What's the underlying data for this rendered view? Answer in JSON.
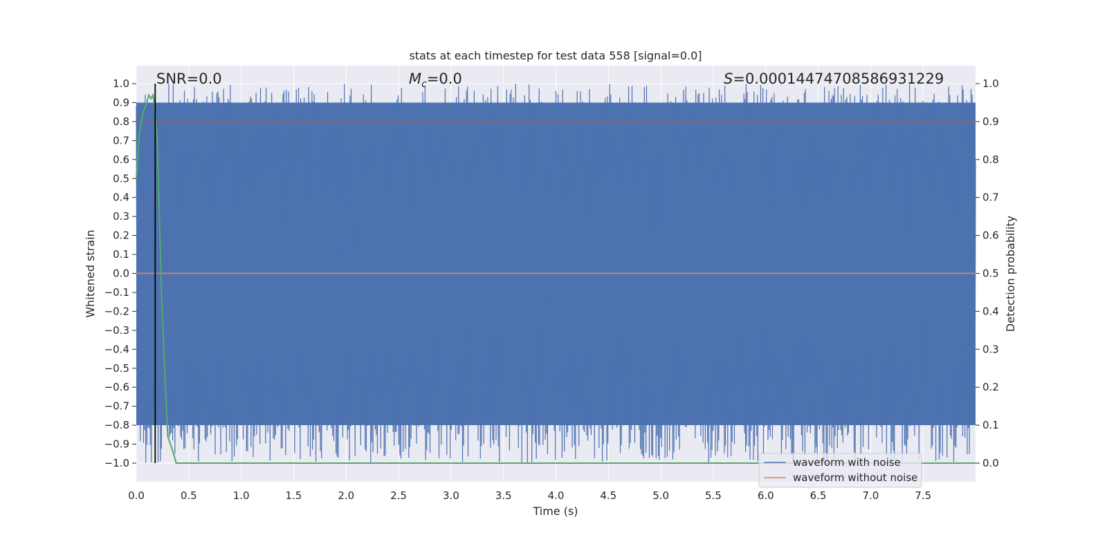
{
  "chart_data": {
    "type": "line",
    "title": "stats at each timestep for test data 558 [signal=0.0]",
    "xlabel": "Time (s)",
    "ylabel_left": "Whitened strain",
    "ylabel_right": "Detection probability",
    "xlim": [
      0,
      8
    ],
    "ylim_left": [
      -1.0,
      1.0
    ],
    "ylim_right": [
      0.0,
      1.0
    ],
    "grid": true,
    "legend_position": "lower-right",
    "x_ticks": [
      "0.0",
      "0.5",
      "1.0",
      "1.5",
      "2.0",
      "2.5",
      "3.0",
      "3.5",
      "4.0",
      "4.5",
      "5.0",
      "5.5",
      "6.0",
      "6.5",
      "7.0",
      "7.5"
    ],
    "y_left_ticks": [
      "1.0",
      "0.9",
      "0.8",
      "0.7",
      "0.6",
      "0.5",
      "0.4",
      "0.3",
      "0.2",
      "0.1",
      "0.0",
      "−0.1",
      "−0.2",
      "−0.3",
      "−0.4",
      "−0.5",
      "−0.6",
      "−0.7",
      "−0.8",
      "−0.9",
      "−1.0"
    ],
    "y_right_ticks": [
      "1.0",
      "0.9",
      "0.8",
      "0.7",
      "0.6",
      "0.5",
      "0.4",
      "0.3",
      "0.2",
      "0.1",
      "0.0"
    ],
    "annotations": {
      "snr": "SNR=0.0",
      "mc_symbol": "M",
      "mc_sub": "c",
      "mc_value": "=0.0",
      "s_symbol": "S",
      "s_value": "=0.00014474708586931229"
    },
    "series": [
      {
        "name": "waveform with noise",
        "color": "#4c72b0",
        "axis": "left",
        "description": "dense noise filling range −1.0 to 1.0"
      },
      {
        "name": "waveform without noise",
        "color": "#dd8452",
        "axis": "left",
        "values_x": [
          0,
          8
        ],
        "values_y": [
          0.0,
          0.0
        ]
      },
      {
        "name": "",
        "color": "#55a868",
        "axis": "right",
        "x": [
          0.0,
          0.03,
          0.07,
          0.1,
          0.12,
          0.14,
          0.16,
          0.18,
          0.2,
          0.22,
          0.24,
          0.27,
          0.3,
          0.35,
          0.38,
          8.0
        ],
        "y": [
          0.75,
          0.87,
          0.93,
          0.95,
          0.97,
          0.96,
          0.97,
          0.93,
          0.85,
          0.65,
          0.45,
          0.25,
          0.07,
          0.03,
          0.0,
          0.0
        ]
      }
    ],
    "threshold_line": {
      "color": "#c44e52",
      "axis": "right",
      "value": 0.9
    },
    "marker_line": {
      "color": "#000000",
      "x": 0.18
    }
  }
}
